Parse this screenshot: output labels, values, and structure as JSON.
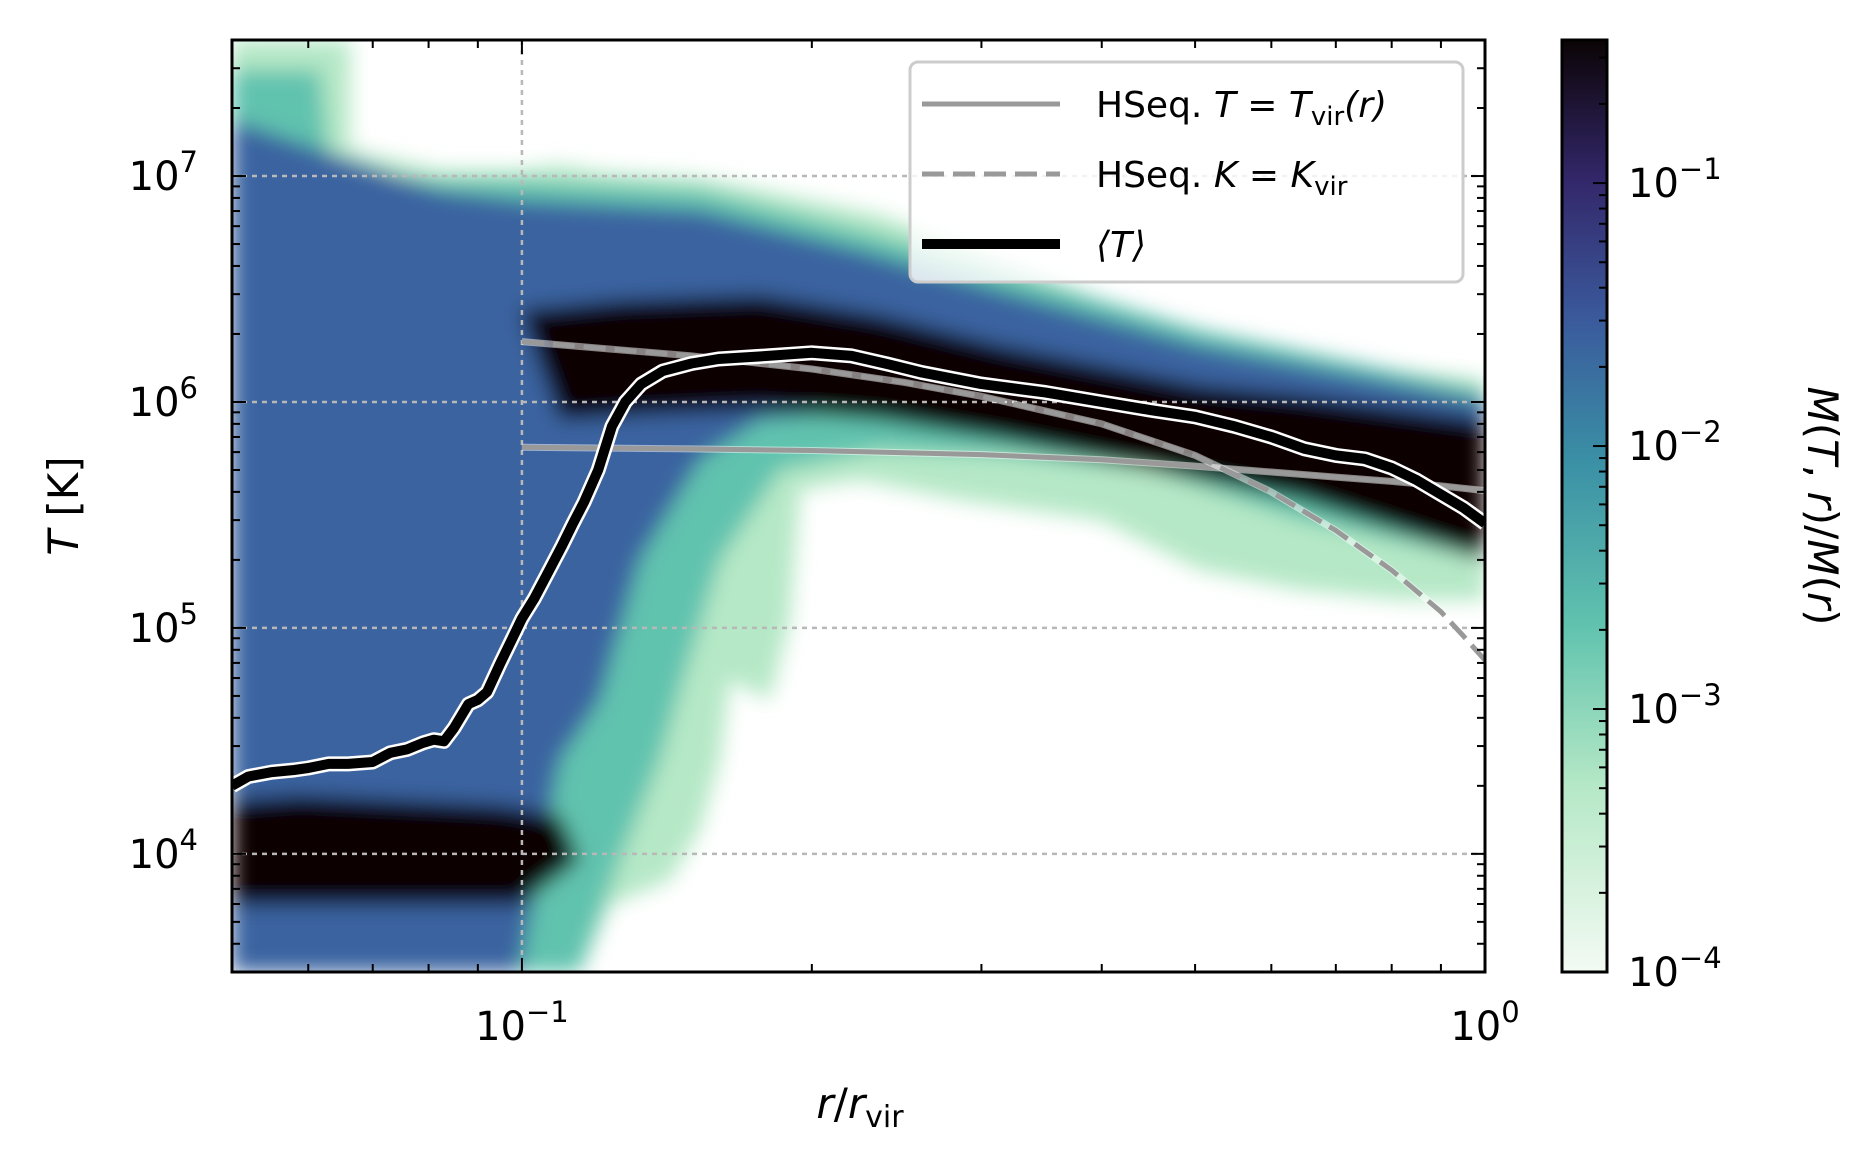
{
  "chart_data": {
    "type": "heatmap",
    "xlabel": "r/r_vir",
    "ylabel": "T [K]",
    "colorbar_label": "M(T, r)/M(r)",
    "xscale": "log",
    "yscale": "log",
    "xlim": [
      0.05,
      1.0
    ],
    "ylim": [
      3000,
      40000000
    ],
    "clim": [
      0.0001,
      0.35
    ],
    "grid": true,
    "legend_position": "top-right",
    "colormap": "mako_r",
    "x_ticks": [
      {
        "base": "10",
        "exp": "−1",
        "value": 0.1
      },
      {
        "base": "10",
        "exp": "0",
        "value": 1.0
      }
    ],
    "y_ticks": [
      {
        "base": "10",
        "exp": "4",
        "value": 10000
      },
      {
        "base": "10",
        "exp": "5",
        "value": 100000
      },
      {
        "base": "10",
        "exp": "6",
        "value": 1000000
      },
      {
        "base": "10",
        "exp": "7",
        "value": 10000000
      }
    ],
    "colorbar_ticks": [
      {
        "base": "10",
        "exp": "−4",
        "value": 0.0001
      },
      {
        "base": "10",
        "exp": "−3",
        "value": 0.001
      },
      {
        "base": "10",
        "exp": "−2",
        "value": 0.01
      },
      {
        "base": "10",
        "exp": "−1",
        "value": 0.1
      }
    ],
    "series": [
      {
        "name": "HSeq. T = T_vir(r)",
        "legend_label": {
          "prefix": "HSeq. ",
          "math": "T = T",
          "sub": "vir",
          "suffix": "(r)"
        },
        "style": "solid",
        "color": "#999999",
        "x": [
          0.1,
          0.15,
          0.2,
          0.3,
          0.4,
          0.5,
          0.6,
          0.7,
          0.8,
          0.9,
          1.0
        ],
        "y": [
          630000,
          620000,
          610000,
          585000,
          555000,
          520000,
          490000,
          465000,
          445000,
          425000,
          405000
        ]
      },
      {
        "name": "HSeq. K = K_vir",
        "legend_label": {
          "prefix": "HSeq. ",
          "math": "K = K",
          "sub": "vir",
          "suffix": ""
        },
        "style": "dashed",
        "color": "#999999",
        "x": [
          0.1,
          0.15,
          0.2,
          0.25,
          0.3,
          0.4,
          0.5,
          0.6,
          0.7,
          0.8,
          0.9,
          0.95,
          1.0
        ],
        "y": [
          1850000,
          1600000,
          1400000,
          1220000,
          1060000,
          800000,
          580000,
          400000,
          270000,
          180000,
          118000,
          92000,
          72000
        ]
      },
      {
        "name": "⟨T⟩",
        "legend_label": {
          "prefix": "",
          "math": "⟨T⟩",
          "sub": "",
          "suffix": ""
        },
        "style": "mean",
        "color": "#000000",
        "x": [
          0.05,
          0.052,
          0.055,
          0.058,
          0.06,
          0.063,
          0.066,
          0.07,
          0.073,
          0.076,
          0.079,
          0.081,
          0.083,
          0.085,
          0.088,
          0.09,
          0.092,
          0.095,
          0.098,
          0.1,
          0.103,
          0.106,
          0.11,
          0.113,
          0.116,
          0.12,
          0.124,
          0.128,
          0.133,
          0.14,
          0.15,
          0.16,
          0.18,
          0.2,
          0.22,
          0.24,
          0.26,
          0.3,
          0.35,
          0.4,
          0.45,
          0.5,
          0.55,
          0.6,
          0.65,
          0.7,
          0.75,
          0.8,
          0.85,
          0.9,
          0.95,
          1.0
        ],
        "y": [
          20000,
          22000,
          23000,
          23500,
          24000,
          25000,
          25000,
          25500,
          28000,
          29000,
          31000,
          32000,
          31500,
          36000,
          46000,
          48000,
          52000,
          70000,
          92000,
          110000,
          135000,
          170000,
          230000,
          290000,
          360000,
          500000,
          780000,
          1000000,
          1200000,
          1370000,
          1480000,
          1550000,
          1600000,
          1650000,
          1600000,
          1470000,
          1350000,
          1200000,
          1100000,
          1000000,
          920000,
          860000,
          780000,
          700000,
          620000,
          580000,
          560000,
          510000,
          450000,
          390000,
          340000,
          290000
        ]
      }
    ],
    "density_regions": [
      {
        "x_range": [
          0.05,
          0.095
        ],
        "y_center": 10500,
        "y_halfwidth_dex": 0.25,
        "level": "peak"
      },
      {
        "x_range": [
          0.1,
          1.0
        ],
        "y_center": 1400000,
        "y_halfwidth_dex": 0.2,
        "level": "peak"
      }
    ]
  }
}
